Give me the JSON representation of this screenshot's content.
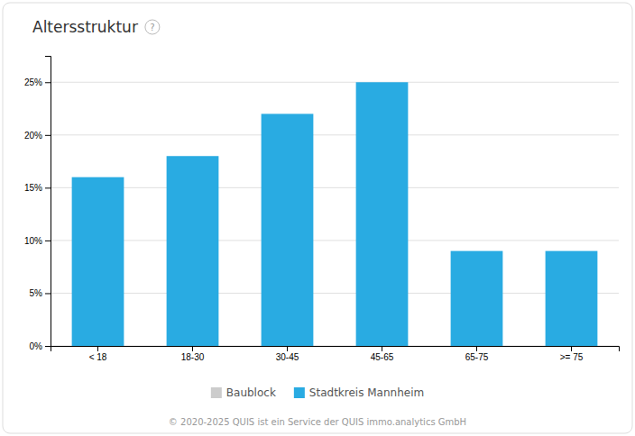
{
  "chart_data": {
    "type": "bar",
    "title": "Altersstruktur",
    "categories": [
      "< 18",
      "18-30",
      "30-45",
      "45-65",
      "65-75",
      ">= 75"
    ],
    "series": [
      {
        "name": "Baublock",
        "color": "#CCCCCC",
        "values": [
          null,
          null,
          null,
          null,
          null,
          null
        ]
      },
      {
        "name": "Stadtkreis Mannheim",
        "color": "#29ABE2",
        "values": [
          16,
          18,
          22,
          25,
          9,
          9
        ]
      }
    ],
    "ylim": [
      0,
      27.5
    ],
    "yticks": [
      {
        "value": 0,
        "label": "0%"
      },
      {
        "value": 5,
        "label": "5%"
      },
      {
        "value": 10,
        "label": "10%"
      },
      {
        "value": 15,
        "label": "15%"
      },
      {
        "value": 20,
        "label": "20%"
      },
      {
        "value": 25,
        "label": "25%"
      }
    ],
    "grid": true,
    "legend": "bottom",
    "annotations": [
      "?",
      "© 2020-2025 QUIS ist ein Service der QUIS immo.analytics GmbH"
    ]
  }
}
